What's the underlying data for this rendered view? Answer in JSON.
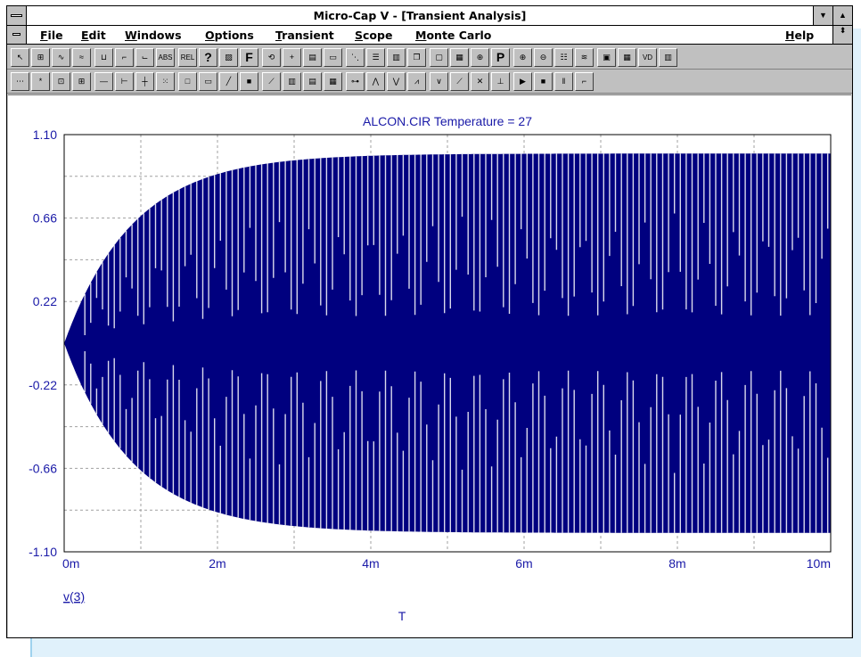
{
  "window": {
    "title": "Micro-Cap V - [Transient Analysis]",
    "minimize_glyph": "▼",
    "maximize_glyph": "▲",
    "restore_glyph": "⬍"
  },
  "menu": {
    "items": [
      "File",
      "Edit",
      "Windows",
      "Options",
      "Transient",
      "Scope",
      "Monte Carlo"
    ],
    "help": "Help"
  },
  "toolbar1": {
    "buttons": [
      {
        "icon": "select-arrow-icon",
        "label": "↖"
      },
      {
        "icon": "component-icon",
        "label": "⊞"
      },
      {
        "icon": "waveform-icon",
        "label": "∿"
      },
      {
        "icon": "multi-wave-icon",
        "label": "≈"
      },
      {
        "icon": "node-icon",
        "label": "⊔"
      },
      {
        "icon": "step-icon",
        "label": "⌐"
      },
      {
        "icon": "stair-icon",
        "label": "⌙"
      },
      {
        "icon": "abs-icon",
        "label": "ABS"
      },
      {
        "icon": "rel-icon",
        "label": "REL"
      },
      {
        "icon": "help-question-icon",
        "label": "?"
      },
      {
        "icon": "hatch-icon",
        "label": "▨"
      },
      {
        "icon": "font-icon",
        "label": "F"
      },
      {
        "icon": "loop-icon",
        "label": "⟲"
      },
      {
        "icon": "cross-icon",
        "label": "+"
      },
      {
        "icon": "grid-icon",
        "label": "▤"
      },
      {
        "icon": "page-icon",
        "label": "▭"
      },
      {
        "icon": "diagonal-icon",
        "label": "⋱"
      },
      {
        "icon": "layout-rows-icon",
        "label": "☰"
      },
      {
        "icon": "layout-cols-icon",
        "label": "▥"
      },
      {
        "icon": "window-stack-icon",
        "label": "❐"
      },
      {
        "icon": "blank-window-icon",
        "label": "▢"
      },
      {
        "icon": "calculator-icon",
        "label": "▦"
      },
      {
        "icon": "split-icon",
        "label": "⊕"
      },
      {
        "icon": "probe-icon",
        "label": "P"
      },
      {
        "icon": "zoom-in-icon",
        "label": "⊕"
      },
      {
        "icon": "zoom-out-icon",
        "label": "⊖"
      },
      {
        "icon": "list-icon",
        "label": "☷"
      },
      {
        "icon": "wave-scope-icon",
        "label": "≋"
      },
      {
        "icon": "screen-icon",
        "label": "▣"
      },
      {
        "icon": "table-icon",
        "label": "▦"
      },
      {
        "icon": "vd-icon",
        "label": "VD"
      },
      {
        "icon": "histogram-icon",
        "label": "▥"
      }
    ]
  },
  "toolbar2": {
    "buttons": [
      {
        "icon": "dotted-line-icon",
        "label": "⋯"
      },
      {
        "icon": "point-icon",
        "label": "*"
      },
      {
        "icon": "box-icon",
        "label": "⊡"
      },
      {
        "icon": "grid-small-icon",
        "label": "⊞"
      },
      {
        "icon": "dash-line-icon",
        "label": "—"
      },
      {
        "icon": "tick-line-icon",
        "label": "⊢"
      },
      {
        "icon": "cross-grid-icon",
        "label": "┼"
      },
      {
        "icon": "dot-grid-icon",
        "label": "⁙"
      },
      {
        "icon": "empty-box-icon",
        "label": "□"
      },
      {
        "icon": "frame-icon",
        "label": "▭"
      },
      {
        "icon": "line-curve-icon",
        "label": "╱"
      },
      {
        "icon": "thick-box-icon",
        "label": "■"
      },
      {
        "icon": "diag-point-icon",
        "label": "⟋"
      },
      {
        "icon": "green-grid-icon",
        "label": "▥"
      },
      {
        "icon": "green-grid2-icon",
        "label": "▤"
      },
      {
        "icon": "green-grid3-icon",
        "label": "▦"
      },
      {
        "icon": "cursor-line-icon",
        "label": "⊶"
      },
      {
        "icon": "peak-icon",
        "label": "⋀"
      },
      {
        "icon": "valley-icon",
        "label": "⋁"
      },
      {
        "icon": "peak-valley-icon",
        "label": "⩘"
      },
      {
        "icon": "low-icon",
        "label": "∨"
      },
      {
        "icon": "slope-icon",
        "label": "⟋"
      },
      {
        "icon": "cursor-x-icon",
        "label": "✕"
      },
      {
        "icon": "cursor-y-icon",
        "label": "⊥"
      },
      {
        "icon": "play-icon",
        "label": "▶"
      },
      {
        "icon": "stop-icon",
        "label": "■"
      },
      {
        "icon": "pause-icon",
        "label": "‖"
      },
      {
        "icon": "step-wave-icon",
        "label": "⌐"
      }
    ]
  },
  "chart_data": {
    "type": "line",
    "title": "ALCON.CIR Temperature = 27",
    "xlabel": "T",
    "series_name": "v(3)",
    "xlim": [
      0,
      10
    ],
    "x_unit_suffix": "m",
    "ylim": [
      -1.1,
      1.1
    ],
    "x_ticks": [
      "0m",
      "2m",
      "4m",
      "6m",
      "8m",
      "10m"
    ],
    "y_ticks": [
      "1.10",
      "0.66",
      "0.22",
      "-0.22",
      "-0.66",
      "-1.10"
    ],
    "envelope_final_amplitude": 1.0,
    "envelope_time_constant_ms": 0.9,
    "grid": true,
    "color": "#00007f",
    "grid_color": "#a0a0a0",
    "text_color": "#1a1aa8"
  }
}
